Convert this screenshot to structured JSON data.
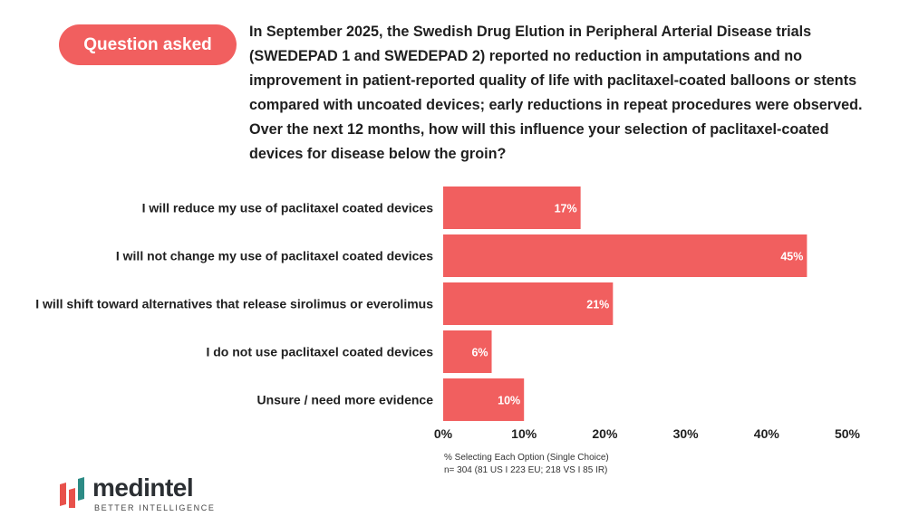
{
  "badge": "Question asked",
  "question": "In September 2025, the Swedish Drug Elution in Peripheral Arterial Disease trials (SWEDEPAD 1 and SWEDEPAD 2) reported no reduction in amputations and no improvement in patient-reported quality of life with paclitaxel-coated balloons or stents compared with uncoated devices; early reductions in repeat procedures were observed. Over the next 12 months, how will this influence your selection of paclitaxel-coated devices for disease below the groin?",
  "colors": {
    "accent": "#f15f5f",
    "text": "#1f1f1f",
    "logo_red": "#e8514b",
    "logo_teal": "#2c8b85"
  },
  "chart_data": {
    "type": "bar",
    "orientation": "horizontal",
    "categories": [
      "I will reduce my use of paclitaxel coated devices",
      "I will not change my use of paclitaxel coated devices",
      "I will shift toward alternatives that release sirolimus or everolimus",
      "I do not use paclitaxel coated devices",
      "Unsure / need more evidence"
    ],
    "values": [
      17,
      45,
      21,
      6,
      10
    ],
    "value_labels": [
      "17%",
      "45%",
      "21%",
      "6%",
      "10%"
    ],
    "xlim": [
      0,
      50
    ],
    "xticks": [
      0,
      10,
      20,
      30,
      40,
      50
    ],
    "xtick_labels": [
      "0%",
      "10%",
      "20%",
      "30%",
      "40%",
      "50%"
    ],
    "xlabel": "% Selecting Each Option (Single Choice)",
    "sample_note": "n= 304 (81 US I 223 EU; 218 VS I 85 IR)",
    "grid": false
  },
  "logo": {
    "name": "medintel",
    "tagline": "BETTER INTELLIGENCE"
  }
}
